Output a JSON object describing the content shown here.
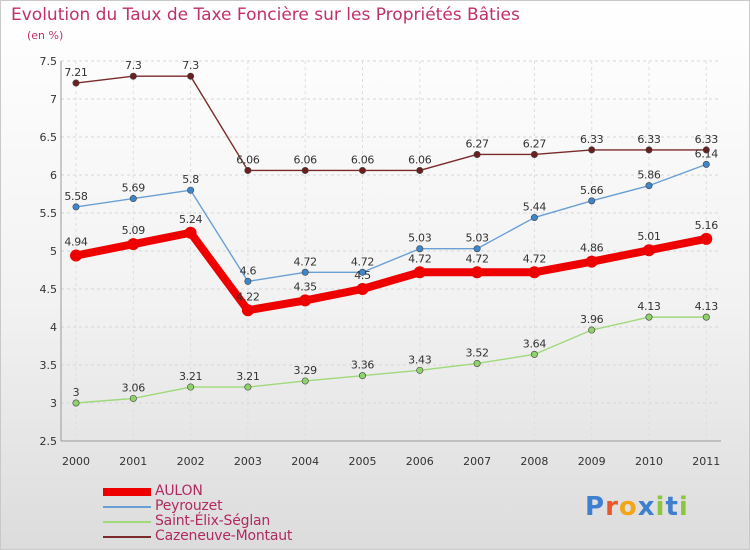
{
  "chart_data": {
    "type": "line",
    "title": "Evolution du Taux de Taxe Foncière sur les Propriétés Bâties",
    "subtitle": "(en %)",
    "categories": [
      "2000",
      "2001",
      "2002",
      "2003",
      "2004",
      "2005",
      "2006",
      "2007",
      "2008",
      "2009",
      "2010",
      "2011"
    ],
    "ylim": [
      2.5,
      7.5
    ],
    "yticks": [
      "2.5",
      "3",
      "3.5",
      "4",
      "4.5",
      "5",
      "5.5",
      "6",
      "6.5",
      "7",
      "7.5"
    ],
    "grid": true,
    "legend_position": "bottom-left",
    "series": [
      {
        "name": "AULON",
        "color": "#ee0000",
        "marker": "#ee0000",
        "values": [
          4.94,
          5.09,
          5.24,
          4.22,
          4.35,
          4.5,
          4.72,
          4.72,
          4.72,
          4.86,
          5.01,
          5.16
        ],
        "labels": [
          "4.94",
          "5.09",
          "5.24",
          "4.22",
          "4.35",
          "4.5",
          "4.72",
          "4.72",
          "4.72",
          "4.86",
          "5.01",
          "5.16"
        ]
      },
      {
        "name": "Peyrouzet",
        "color": "#6a9fd4",
        "marker": "#3d86c9",
        "values": [
          5.58,
          5.69,
          5.8,
          4.6,
          4.72,
          4.72,
          5.03,
          5.03,
          5.44,
          5.66,
          5.86,
          6.14
        ],
        "labels": [
          "5.58",
          "5.69",
          "5.8",
          "4.6",
          "4.72",
          "4.72",
          "5.03",
          "5.03",
          "5.44",
          "5.66",
          "5.86",
          "6.14"
        ]
      },
      {
        "name": "Saint-Élix-Séglan",
        "color": "#9fd97a",
        "marker": "#8fd16a",
        "values": [
          3,
          3.06,
          3.21,
          3.21,
          3.29,
          3.36,
          3.43,
          3.52,
          3.64,
          3.96,
          4.13,
          4.13
        ],
        "labels": [
          "3",
          "3.06",
          "3.21",
          "3.21",
          "3.29",
          "3.36",
          "3.43",
          "3.52",
          "3.64",
          "3.96",
          "4.13",
          "4.13"
        ]
      },
      {
        "name": "Cazeneuve-Montaut",
        "color": "#7a2a2a",
        "marker": "#6b1f1f",
        "values": [
          7.21,
          7.3,
          7.3,
          6.06,
          6.06,
          6.06,
          6.06,
          6.27,
          6.27,
          6.33,
          6.33,
          6.33
        ],
        "labels": [
          "7.21",
          "7.3",
          "7.3",
          "6.06",
          "6.06",
          "6.06",
          "6.06",
          "6.27",
          "6.27",
          "6.33",
          "6.33",
          "6.33"
        ]
      }
    ]
  },
  "logo": {
    "text": "Proxiti",
    "letter_colors": [
      "#3f7fcf",
      "#e8562a",
      "#f2a516",
      "#3f7fcf",
      "#8cc63f",
      "#3f7fcf",
      "#8cc63f"
    ]
  }
}
